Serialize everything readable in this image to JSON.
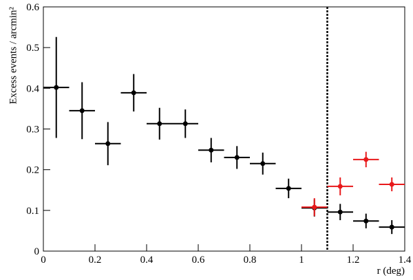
{
  "chart_data": {
    "type": "errorbar",
    "xlabel": "r (deg)",
    "ylabel": "Excess events / arcmin²",
    "xlim": [
      0,
      1.4
    ],
    "ylim": [
      0,
      0.6
    ],
    "xticks": [
      0,
      0.2,
      0.4,
      0.6,
      0.8,
      1,
      1.2,
      1.4
    ],
    "yticks": [
      0,
      0.1,
      0.2,
      0.3,
      0.4,
      0.5,
      0.6
    ],
    "vline": 1.1,
    "series": [
      {
        "color": "#000000",
        "x": [
          0.05,
          0.15,
          0.25,
          0.35,
          0.45,
          0.55,
          0.65,
          0.75,
          0.85,
          0.95,
          1.05,
          1.15,
          1.25,
          1.35
        ],
        "xerr": [
          0.05,
          0.05,
          0.05,
          0.05,
          0.05,
          0.05,
          0.05,
          0.05,
          0.05,
          0.05,
          0.05,
          0.05,
          0.05,
          0.05
        ],
        "values": [
          0.402,
          0.345,
          0.264,
          0.389,
          0.313,
          0.313,
          0.248,
          0.23,
          0.215,
          0.154,
          0.106,
          0.096,
          0.074,
          0.059
        ],
        "yerr": [
          0.124,
          0.07,
          0.053,
          0.046,
          0.039,
          0.035,
          0.03,
          0.028,
          0.027,
          0.024,
          0.021,
          0.02,
          0.018,
          0.017
        ]
      },
      {
        "color": "#e8191b",
        "x": [
          1.05,
          1.15,
          1.25,
          1.35
        ],
        "xerr": [
          0.05,
          0.05,
          0.05,
          0.05
        ],
        "values": [
          0.108,
          0.159,
          0.225,
          0.164
        ],
        "yerr": [
          0.022,
          0.022,
          0.019,
          0.017
        ]
      }
    ]
  }
}
